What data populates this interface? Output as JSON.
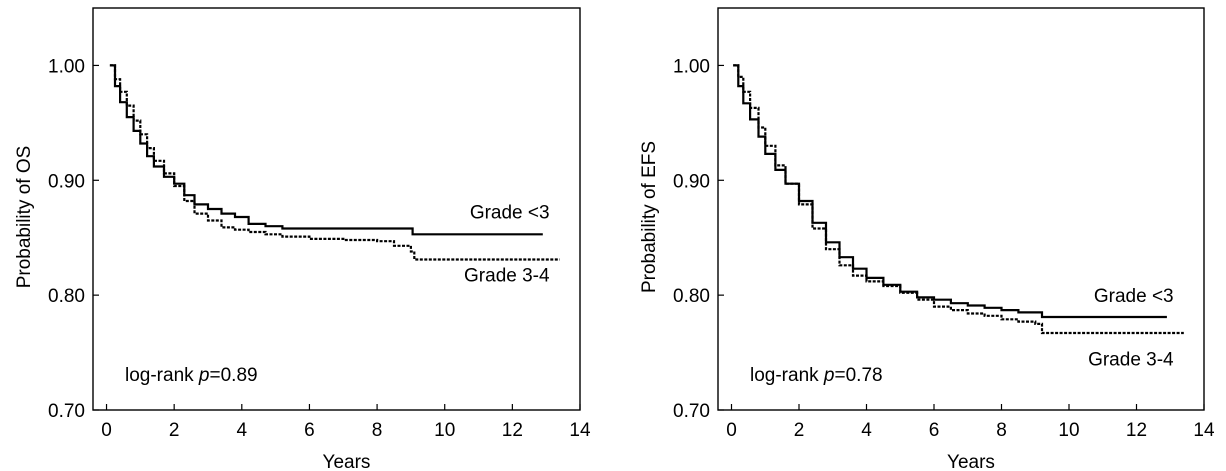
{
  "chart_data": [
    {
      "type": "line",
      "title": "",
      "xlabel": "Years",
      "ylabel": "Probability of OS",
      "xlim": [
        -0.4,
        14
      ],
      "ylim": [
        0.7,
        1.05
      ],
      "x_ticks": [
        0,
        2,
        4,
        6,
        8,
        10,
        12,
        14
      ],
      "x_tick_labels": [
        "0",
        "2",
        "4",
        "6",
        "8",
        "10",
        "12",
        "14"
      ],
      "y_ticks": [
        0.7,
        0.8,
        0.9,
        1.0
      ],
      "y_tick_labels": [
        "0.70",
        "0.80",
        "0.90",
        "1.00"
      ],
      "annotation": {
        "prefix": "log-rank ",
        "italic": "p",
        "suffix": "=0.89"
      },
      "series": [
        {
          "name": "Grade <3",
          "style": "solid",
          "label_anchor": [
            13.1,
            0.873
          ],
          "x": [
            0.1,
            0.25,
            0.4,
            0.6,
            0.8,
            1.0,
            1.2,
            1.4,
            1.7,
            2.0,
            2.3,
            2.6,
            3.0,
            3.4,
            3.8,
            4.2,
            4.7,
            5.2,
            6.0,
            7.0,
            8.0,
            9.0,
            9.05,
            10.0,
            11.0,
            12.0,
            12.9
          ],
          "y": [
            1.0,
            0.982,
            0.968,
            0.955,
            0.943,
            0.932,
            0.921,
            0.912,
            0.903,
            0.897,
            0.887,
            0.879,
            0.875,
            0.871,
            0.868,
            0.862,
            0.86,
            0.858,
            0.858,
            0.858,
            0.858,
            0.858,
            0.853,
            0.853,
            0.853,
            0.853,
            0.853
          ]
        },
        {
          "name": "Grade 3-4",
          "style": "dashed",
          "label_anchor": [
            13.1,
            0.818
          ],
          "x": [
            0.1,
            0.25,
            0.4,
            0.6,
            0.8,
            1.0,
            1.2,
            1.4,
            1.7,
            2.0,
            2.3,
            2.6,
            3.0,
            3.4,
            3.8,
            4.2,
            4.7,
            5.2,
            6.0,
            7.0,
            8.0,
            8.5,
            9.0,
            9.1,
            10.0,
            11.0,
            12.0,
            13.4
          ],
          "y": [
            1.0,
            0.988,
            0.977,
            0.965,
            0.952,
            0.94,
            0.928,
            0.917,
            0.906,
            0.895,
            0.882,
            0.871,
            0.865,
            0.859,
            0.857,
            0.855,
            0.853,
            0.851,
            0.849,
            0.848,
            0.847,
            0.843,
            0.838,
            0.831,
            0.831,
            0.831,
            0.831,
            0.831
          ]
        }
      ]
    },
    {
      "type": "line",
      "title": "",
      "xlabel": "Years",
      "ylabel": "Probability of EFS",
      "xlim": [
        -0.4,
        14
      ],
      "ylim": [
        0.7,
        1.05
      ],
      "x_ticks": [
        0,
        2,
        4,
        6,
        8,
        10,
        12,
        14
      ],
      "x_tick_labels": [
        "0",
        "2",
        "4",
        "6",
        "8",
        "10",
        "12",
        "14"
      ],
      "y_ticks": [
        0.7,
        0.8,
        0.9,
        1.0
      ],
      "y_tick_labels": [
        "0.70",
        "0.80",
        "0.90",
        "1.00"
      ],
      "annotation": {
        "prefix": "log-rank ",
        "italic": "p",
        "suffix": "=0.78"
      },
      "series": [
        {
          "name": "Grade <3",
          "style": "solid",
          "label_anchor": [
            13.1,
            0.8
          ],
          "x": [
            0.05,
            0.2,
            0.35,
            0.55,
            0.8,
            1.0,
            1.3,
            1.6,
            2.0,
            2.4,
            2.8,
            3.2,
            3.6,
            4.0,
            4.5,
            5.0,
            5.5,
            6.0,
            6.5,
            7.0,
            7.5,
            8.0,
            8.5,
            9.0,
            9.2,
            10.0,
            11.0,
            12.0,
            12.9
          ],
          "y": [
            1.0,
            0.982,
            0.967,
            0.953,
            0.938,
            0.923,
            0.909,
            0.897,
            0.882,
            0.863,
            0.846,
            0.833,
            0.823,
            0.815,
            0.809,
            0.803,
            0.798,
            0.796,
            0.793,
            0.791,
            0.789,
            0.787,
            0.785,
            0.785,
            0.781,
            0.781,
            0.781,
            0.781,
            0.781
          ]
        },
        {
          "name": "Grade 3-4",
          "style": "dashed",
          "label_anchor": [
            13.1,
            0.745
          ],
          "x": [
            0.05,
            0.2,
            0.35,
            0.55,
            0.8,
            1.0,
            1.3,
            1.6,
            2.0,
            2.4,
            2.8,
            3.2,
            3.6,
            4.0,
            4.5,
            5.0,
            5.5,
            6.0,
            6.5,
            7.0,
            7.5,
            8.0,
            8.5,
            9.0,
            9.2,
            10.0,
            11.0,
            12.0,
            13.4
          ],
          "y": [
            1.0,
            0.99,
            0.977,
            0.963,
            0.946,
            0.93,
            0.913,
            0.897,
            0.879,
            0.858,
            0.84,
            0.826,
            0.817,
            0.812,
            0.808,
            0.802,
            0.796,
            0.79,
            0.787,
            0.784,
            0.782,
            0.779,
            0.777,
            0.775,
            0.767,
            0.767,
            0.767,
            0.767,
            0.767
          ]
        }
      ]
    }
  ]
}
